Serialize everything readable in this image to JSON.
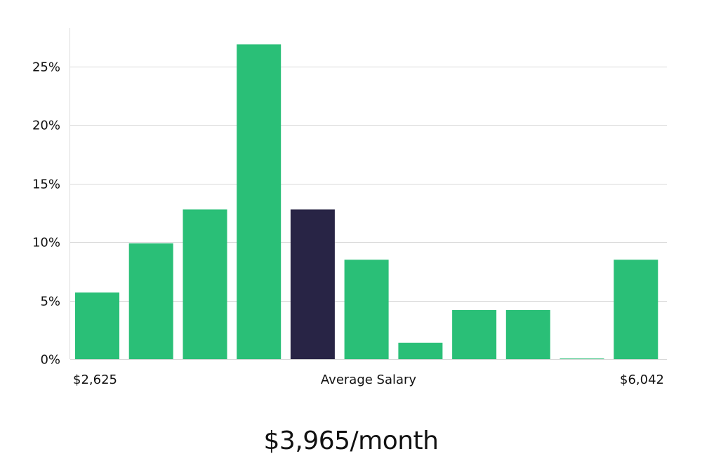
{
  "chart_data": {
    "type": "bar",
    "title": "",
    "categories": [
      "1",
      "2",
      "3",
      "4",
      "5",
      "6",
      "7",
      "8",
      "9",
      "10",
      "11"
    ],
    "values": [
      5.7,
      9.9,
      12.8,
      26.9,
      12.8,
      8.5,
      1.4,
      4.2,
      4.2,
      0.05,
      8.5
    ],
    "highlight_index": 4,
    "y_ticks": [
      "0%",
      "5%",
      "10%",
      "15%",
      "20%",
      "25%"
    ],
    "y_tick_values": [
      0,
      5,
      10,
      15,
      20,
      25
    ],
    "ylim": [
      0,
      28.3
    ],
    "x_min_label": "$2,625",
    "x_center_label": "Average Salary",
    "x_max_label": "$6,042",
    "grid": true,
    "colors": {
      "bar": "#2abf77",
      "highlight": "#282445",
      "grid": "#d9d9d9",
      "axis": "#dddddd"
    }
  },
  "headline": "$3,965/month"
}
